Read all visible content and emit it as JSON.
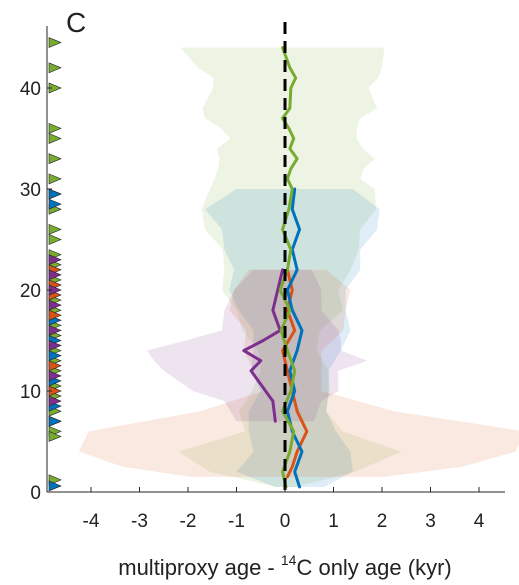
{
  "panel_label": "C",
  "chart_data": {
    "type": "line",
    "xlabel_prefix": "multiproxy age - ",
    "xlabel_sup": "14",
    "xlabel_suffix": "C only age (kyr)",
    "ylabel": "",
    "xlim": [
      -4.8,
      4.8
    ],
    "ylim": [
      0,
      47
    ],
    "xticks": [
      -4,
      -3,
      -2,
      -1,
      0,
      1,
      2,
      3,
      4
    ],
    "xtick_labels": [
      "-4",
      "-3",
      "-2",
      "-1",
      "0",
      "1",
      "2",
      "3",
      "4"
    ],
    "yticks": [
      0,
      10,
      20,
      30,
      40
    ],
    "ytick_labels": [
      "0",
      "10",
      "20",
      "30",
      "40"
    ],
    "reference_line": {
      "x": 0,
      "style": "dashed",
      "color": "#000000"
    },
    "grid": false,
    "legend": "none",
    "series": [
      {
        "color": "#77AC30",
        "x": [
          0.02,
          -0.05,
          0.1,
          0.18,
          -0.05,
          0.12,
          0.2,
          0.05,
          -0.08,
          0.1,
          -0.1,
          0.05,
          0.12,
          -0.05,
          0.08,
          0.15,
          0.05,
          0.12,
          0.25,
          0.1,
          0.18,
          0.08,
          -0.05,
          0.1,
          0.12,
          0.22,
          0.1,
          -0.05
        ],
        "y": [
          0.5,
          2,
          4,
          6,
          8,
          10,
          12,
          14,
          16,
          18,
          20,
          22,
          24,
          26,
          28,
          30,
          31,
          32,
          33,
          34,
          35,
          36,
          37,
          38,
          40,
          41,
          42,
          44
        ],
        "band": [
          0.2,
          1.5,
          2.3,
          1.0,
          0.9,
          0.8,
          0.7,
          0.6,
          0.8,
          1.1,
          1.2,
          1.3,
          1.4,
          1.6,
          1.8,
          1.7,
          1.5,
          1.5,
          1.6,
          1.5,
          1.3,
          1.4,
          1.6,
          1.8,
          1.6,
          1.7,
          1.9,
          2.1
        ]
      },
      {
        "color": "#0072BD",
        "x": [
          0.3,
          0.2,
          0.35,
          0.15,
          0.05,
          0.2,
          0.1,
          0.25,
          0.35,
          0.15,
          0.05,
          0.25,
          0.15,
          0.3,
          0.15,
          0.2
        ],
        "y": [
          0.5,
          2,
          4,
          6,
          8,
          10,
          12,
          14,
          16,
          18,
          20,
          22,
          24,
          26,
          28,
          30
        ],
        "band": [
          0.5,
          1.2,
          1.0,
          0.9,
          0.8,
          0.7,
          0.8,
          0.9,
          1.0,
          1.1,
          1.2,
          1.3,
          1.4,
          1.6,
          1.8,
          1.2
        ]
      },
      {
        "color": "#D95319",
        "x": [
          0.05,
          0.15,
          0.25,
          0.45,
          0.25,
          0.15,
          0.05,
          -0.05,
          0.2,
          0.05,
          0.15,
          0.05
        ],
        "y": [
          1.5,
          2.5,
          4,
          6,
          8,
          10,
          12,
          14,
          16,
          18,
          20,
          22
        ],
        "band": [
          2.0,
          3.5,
          4.5,
          4.5,
          2.0,
          0.6,
          0.7,
          0.8,
          1.0,
          1.2,
          1.2,
          0.8
        ]
      },
      {
        "color": "#7E2F8E",
        "x": [
          -0.2,
          -0.25,
          -0.4,
          -0.7,
          -0.5,
          -0.85,
          -0.45,
          -0.1,
          -0.25,
          -0.15,
          -0.05
        ],
        "y": [
          7,
          9,
          10,
          12,
          13,
          14,
          15,
          16,
          18,
          20,
          22
        ],
        "band": [
          0.8,
          1.0,
          1.5,
          1.8,
          2.2,
          2.0,
          1.6,
          1.2,
          1.0,
          0.9,
          0.6
        ]
      }
    ],
    "tie_points_green": [
      44.5,
      42,
      40,
      36,
      35,
      33,
      31,
      29.5,
      28,
      26,
      25,
      23.5,
      22.5,
      21,
      19,
      18,
      16.5,
      15.5,
      14,
      13,
      12,
      10.5,
      9.5,
      8,
      7,
      6,
      5.5,
      1.2
    ],
    "tie_points_blue": [
      29.5,
      28.5,
      17,
      15,
      13.5,
      11,
      8.5,
      7,
      0.6
    ],
    "tie_points_orange": [
      22,
      20.5,
      19.5,
      17.5,
      12.5,
      10
    ],
    "tie_points_purple": [
      23,
      21.5,
      20,
      18.5,
      16,
      14.5,
      11.5,
      9
    ]
  }
}
